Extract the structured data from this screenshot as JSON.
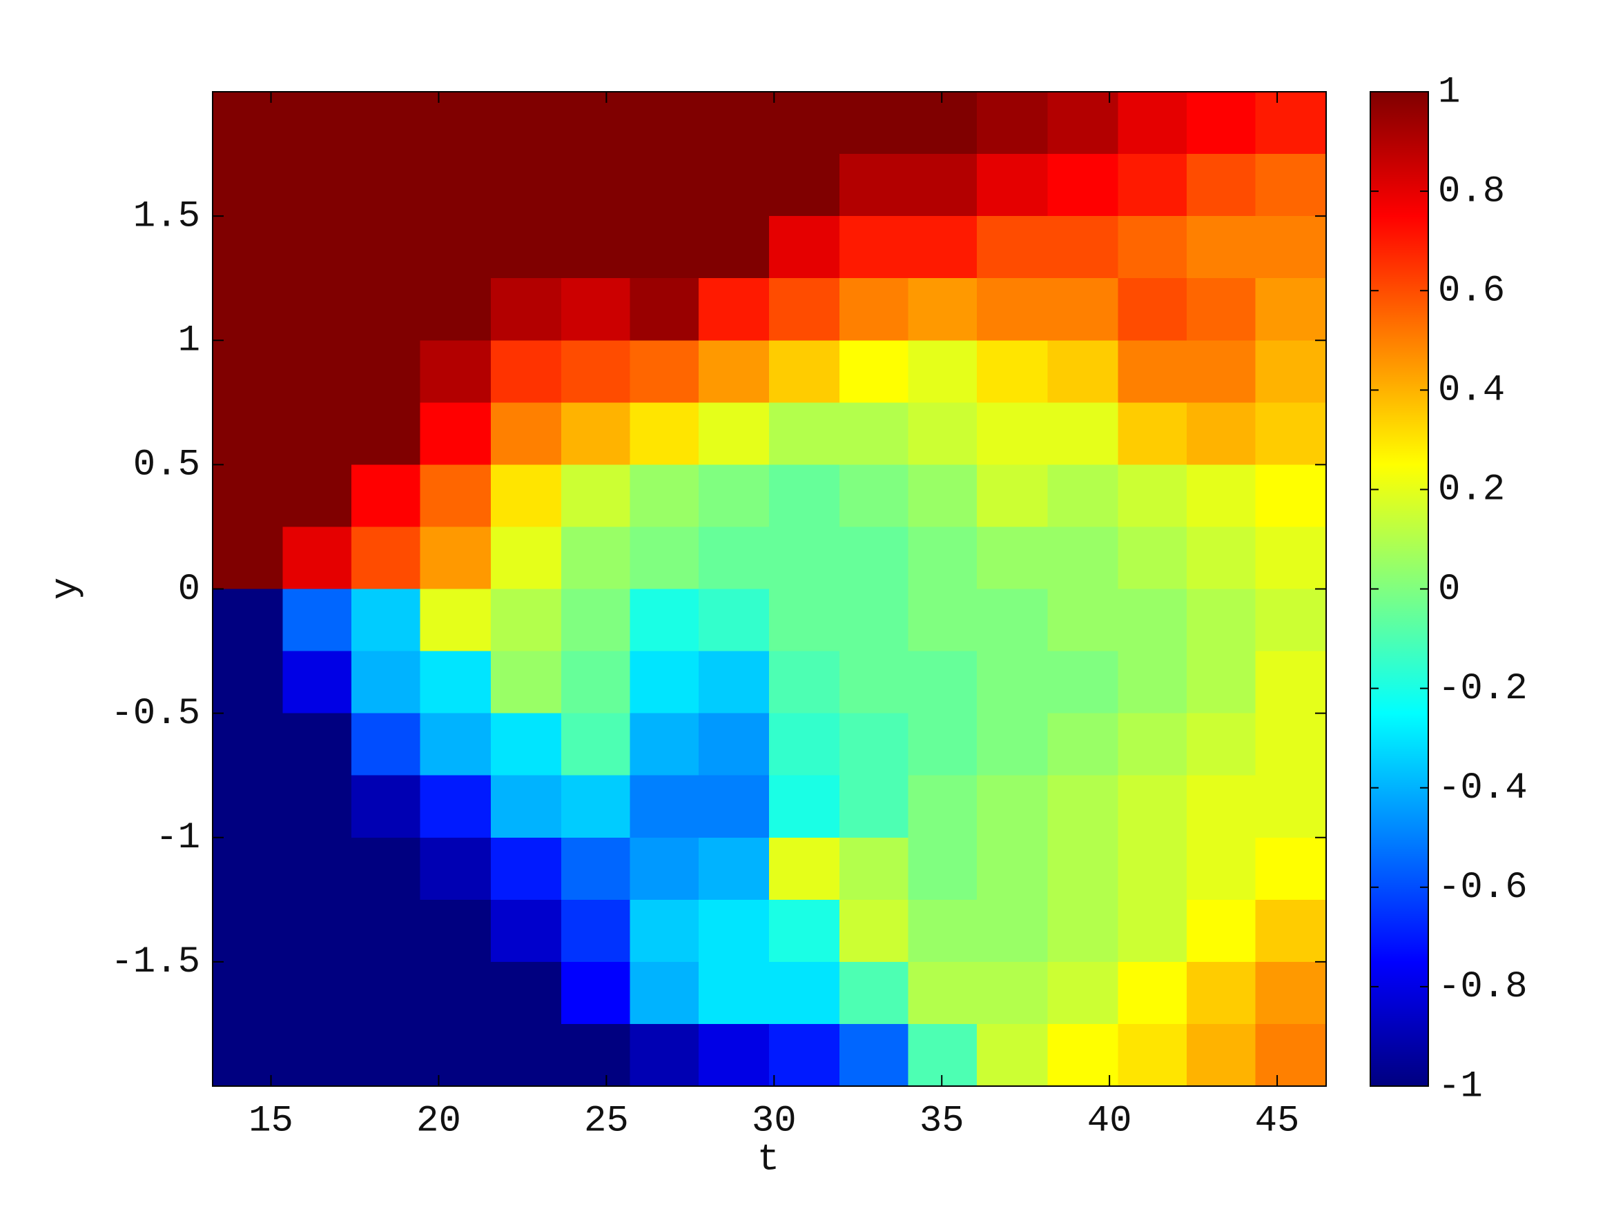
{
  "chart_data": {
    "type": "heatmap",
    "colormap": "jet",
    "xlabel": "t",
    "ylabel": "y",
    "xlim": [
      13.26,
      46.46
    ],
    "xticks": [
      15,
      20,
      25,
      30,
      35,
      40,
      45
    ],
    "ylim": [
      -2,
      2
    ],
    "yticks": [
      -1.5,
      -1,
      -0.5,
      0,
      0.5,
      1,
      1.5
    ],
    "clim": [
      -1,
      1
    ],
    "cticks": [
      -1,
      -0.8,
      -0.6,
      -0.4,
      -0.2,
      0,
      0.2,
      0.4,
      0.6,
      0.8,
      1
    ],
    "x": [
      14.3,
      16.4,
      18.4,
      20.5,
      22.6,
      24.7,
      26.7,
      28.8,
      30.9,
      33.0,
      35.0,
      37.1,
      39.2,
      41.3,
      43.3,
      45.4
    ],
    "y": [
      1.875,
      1.625,
      1.375,
      1.125,
      0.875,
      0.625,
      0.375,
      0.125,
      -0.125,
      -0.375,
      -0.625,
      -0.875,
      -1.125,
      -1.375,
      -1.625,
      -1.875
    ],
    "z": [
      [
        1,
        1,
        1,
        1,
        1,
        1,
        1,
        1,
        1,
        1,
        1,
        0.95,
        0.9,
        0.8,
        0.75,
        0.7
      ],
      [
        1,
        1,
        1,
        1,
        1,
        1,
        1,
        1,
        1,
        0.9,
        0.9,
        0.8,
        0.75,
        0.7,
        0.6,
        0.55
      ],
      [
        1,
        1,
        1,
        1,
        1,
        1,
        1,
        1,
        0.8,
        0.7,
        0.7,
        0.6,
        0.6,
        0.55,
        0.5,
        0.5
      ],
      [
        1,
        1,
        1,
        1,
        0.9,
        0.85,
        0.95,
        0.7,
        0.6,
        0.5,
        0.45,
        0.5,
        0.5,
        0.6,
        0.55,
        0.45
      ],
      [
        1,
        1,
        1,
        0.9,
        0.65,
        0.6,
        0.55,
        0.45,
        0.35,
        0.25,
        0.2,
        0.3,
        0.35,
        0.5,
        0.5,
        0.4
      ],
      [
        1,
        1,
        1,
        0.75,
        0.5,
        0.4,
        0.3,
        0.2,
        0.1,
        0.1,
        0.15,
        0.2,
        0.2,
        0.35,
        0.4,
        0.35
      ],
      [
        1,
        1,
        0.75,
        0.55,
        0.3,
        0.15,
        0.05,
        0,
        -0.05,
        0,
        0.05,
        0.15,
        0.1,
        0.15,
        0.2,
        0.25
      ],
      [
        1,
        0.8,
        0.6,
        0.45,
        0.2,
        0.05,
        0,
        -0.05,
        -0.05,
        -0.05,
        0,
        0.05,
        0.05,
        0.1,
        0.15,
        0.2
      ],
      [
        -1,
        -0.55,
        -0.35,
        0.2,
        0.1,
        0,
        -0.2,
        -0.15,
        -0.05,
        -0.05,
        0,
        0,
        0.05,
        0.05,
        0.1,
        0.15
      ],
      [
        -1,
        -0.8,
        -0.4,
        -0.3,
        0.05,
        -0.05,
        -0.3,
        -0.35,
        -0.1,
        -0.05,
        -0.05,
        0,
        0,
        0.05,
        0.1,
        0.2
      ],
      [
        -1,
        -1,
        -0.6,
        -0.4,
        -0.3,
        -0.1,
        -0.4,
        -0.45,
        -0.15,
        -0.1,
        -0.05,
        0,
        0.05,
        0.1,
        0.15,
        0.2
      ],
      [
        -1,
        -1,
        -0.9,
        -0.7,
        -0.4,
        -0.35,
        -0.5,
        -0.5,
        -0.2,
        -0.1,
        0,
        0.05,
        0.1,
        0.15,
        0.2,
        0.2
      ],
      [
        -1,
        -1,
        -1,
        -0.9,
        -0.7,
        -0.55,
        -0.45,
        -0.4,
        0.2,
        0.1,
        0,
        0.05,
        0.1,
        0.15,
        0.2,
        0.25
      ],
      [
        -1,
        -1,
        -1,
        -1,
        -0.85,
        -0.65,
        -0.35,
        -0.3,
        -0.2,
        0.15,
        0.05,
        0.05,
        0.1,
        0.15,
        0.25,
        0.35
      ],
      [
        -1,
        -1,
        -1,
        -1,
        -1,
        -0.75,
        -0.4,
        -0.3,
        -0.3,
        -0.1,
        0.1,
        0.1,
        0.15,
        0.25,
        0.35,
        0.45
      ],
      [
        -1,
        -1,
        -1,
        -1,
        -1,
        -1,
        -0.9,
        -0.8,
        -0.7,
        -0.55,
        -0.1,
        0.15,
        0.25,
        0.3,
        0.4,
        0.5
      ]
    ]
  }
}
